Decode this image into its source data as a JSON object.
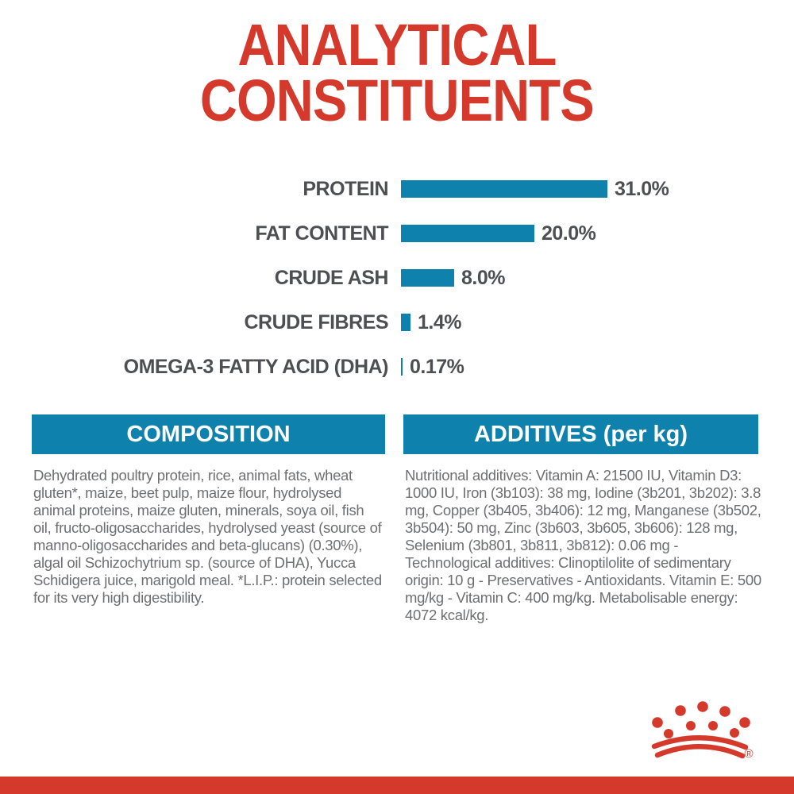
{
  "title": {
    "line1": "ANALYTICAL",
    "line2": "CONSTITUENTS"
  },
  "chart_data": {
    "type": "bar",
    "orientation": "horizontal",
    "title": "ANALYTICAL CONSTITUENTS",
    "categories": [
      "PROTEIN",
      "FAT CONTENT",
      "CRUDE ASH",
      "CRUDE FIBRES",
      "OMEGA-3 FATTY ACID (DHA)"
    ],
    "values": [
      31.0,
      20.0,
      8.0,
      1.4,
      0.17
    ],
    "value_labels": [
      "31.0%",
      "20.0%",
      "8.0%",
      "1.4%",
      "0.17%"
    ],
    "unit": "%",
    "xlim": [
      0,
      31
    ],
    "grid": false,
    "legend": false,
    "bar_color": "#0e81ad",
    "label_color": "#4d4f53"
  },
  "sections": {
    "composition": {
      "header": "COMPOSITION",
      "body": "Dehydrated poultry protein, rice, animal fats, wheat gluten*, maize, beet pulp, maize flour, hydrolysed animal proteins, maize gluten, minerals, soya oil, fish oil, fructo-oligosaccharides, hydrolysed yeast (source of manno-oligosaccharides and beta-glucans) (0.30%), algal oil Schizochytrium sp. (source of DHA), Yucca Schidigera juice, marigold meal. *L.I.P.: protein selected for its very high digestibility."
    },
    "additives": {
      "header": "ADDITIVES (per kg)",
      "body": "Nutritional additives: Vitamin A: 21500 IU, Vitamin D3: 1000 IU, Iron (3b103): 38 mg, Iodine (3b201, 3b202): 3.8 mg, Copper (3b405, 3b406): 12 mg, Manganese (3b502, 3b504): 50 mg, Zinc (3b603, 3b605, 3b606): 128 mg, Selenium (3b801, 3b811, 3b812): 0.06 mg - Technological additives: Clinoptilolite of sedimentary origin: 10 g - Preservatives - Antioxidants. Vitamin E: 500 mg/kg - Vitamin C: 400 mg/kg. Metabolisable energy: 4072 kcal/kg."
    }
  },
  "footer": {
    "registered_mark": "®"
  },
  "colors": {
    "brand_red": "#d5392b",
    "brand_blue": "#0e81ad",
    "chart_text_dark": "#4d4f53",
    "body_text_gray": "#6e6f71",
    "background": "#ffffff"
  }
}
